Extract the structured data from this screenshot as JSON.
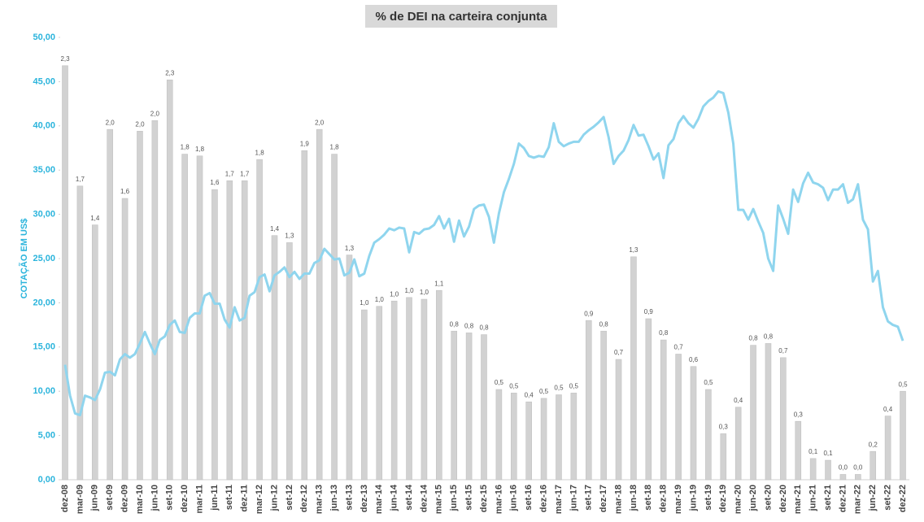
{
  "chart_data": {
    "type": "combo",
    "title": "% de DEI na carteira conjunta",
    "y_label": "COTAÇÃO EM US$",
    "categories": [
      "dez-08",
      null,
      null,
      "mar-09",
      null,
      null,
      "jun-09",
      null,
      null,
      "set-09",
      null,
      null,
      "dez-09",
      null,
      null,
      "mar-10",
      null,
      null,
      "jun-10",
      null,
      null,
      "set-10",
      null,
      null,
      "dez-10",
      null,
      null,
      "mar-11",
      null,
      null,
      "jun-11",
      null,
      null,
      "set-11",
      null,
      null,
      "dez-11",
      null,
      null,
      "mar-12",
      null,
      null,
      "jun-12",
      null,
      null,
      "set-12",
      null,
      null,
      "dez-12",
      null,
      null,
      "mar-13",
      null,
      null,
      "jun-13",
      null,
      null,
      "set-13",
      null,
      null,
      "dez-13",
      null,
      null,
      "mar-14",
      null,
      null,
      "jun-14",
      null,
      null,
      "set-14",
      null,
      null,
      "dez-14",
      null,
      null,
      "mar-15",
      null,
      null,
      "jun-15",
      null,
      null,
      "set-15",
      null,
      null,
      "dez-15",
      null,
      null,
      "mar-16",
      null,
      null,
      "jun-16",
      null,
      null,
      "set-16",
      null,
      null,
      "dez-16",
      null,
      null,
      "mar-17",
      null,
      null,
      "jun-17",
      null,
      null,
      "set-17",
      null,
      null,
      "dez-17",
      null,
      null,
      "mar-18",
      null,
      null,
      "jun-18",
      null,
      null,
      "set-18",
      null,
      null,
      "dez-18",
      null,
      null,
      "mar-19",
      null,
      null,
      "jun-19",
      null,
      null,
      "set-19",
      null,
      null,
      "dez-19",
      null,
      null,
      "mar-20",
      null,
      null,
      "jun-20",
      null,
      null,
      "set-20",
      null,
      null,
      "dez-20",
      null,
      null,
      "mar-21",
      null,
      null,
      "jun-21",
      null,
      null,
      "set-21",
      null,
      null,
      "dez-21",
      null,
      null,
      "mar-22",
      null,
      null,
      "jun-22",
      null,
      null,
      "set-22",
      null,
      null,
      "dez-22"
    ],
    "series": [
      {
        "type": "bar",
        "axis": "y2",
        "color": "#d2d2d2",
        "values": [
          2.34,
          null,
          null,
          1.66,
          null,
          null,
          1.44,
          null,
          null,
          1.98,
          null,
          null,
          1.59,
          null,
          null,
          1.97,
          null,
          null,
          2.03,
          null,
          null,
          2.26,
          null,
          null,
          1.84,
          null,
          null,
          1.83,
          null,
          null,
          1.64,
          null,
          null,
          1.69,
          null,
          null,
          1.69,
          null,
          null,
          1.81,
          null,
          null,
          1.38,
          null,
          null,
          1.34,
          null,
          null,
          1.86,
          null,
          null,
          1.98,
          null,
          null,
          1.84,
          null,
          null,
          1.27,
          null,
          null,
          0.96,
          null,
          null,
          0.98,
          null,
          null,
          1.01,
          null,
          null,
          1.03,
          null,
          null,
          1.02,
          null,
          null,
          1.07,
          null,
          null,
          0.84,
          null,
          null,
          0.83,
          null,
          null,
          0.82,
          null,
          null,
          0.51,
          null,
          null,
          0.49,
          null,
          null,
          0.44,
          null,
          null,
          0.46,
          null,
          null,
          0.48,
          null,
          null,
          0.49,
          null,
          null,
          0.9,
          null,
          null,
          0.84,
          null,
          null,
          0.68,
          null,
          null,
          1.26,
          null,
          null,
          0.91,
          null,
          null,
          0.79,
          null,
          null,
          0.71,
          null,
          null,
          0.64,
          null,
          null,
          0.51,
          null,
          null,
          0.26,
          null,
          null,
          0.41,
          null,
          null,
          0.76,
          null,
          null,
          0.77,
          null,
          null,
          0.69,
          null,
          null,
          0.33,
          null,
          null,
          0.12,
          null,
          null,
          0.11,
          null,
          null,
          0.03,
          null,
          null,
          0.03,
          null,
          null,
          0.16,
          null,
          null,
          0.36,
          null,
          null,
          0.5
        ],
        "value_labels": [
          "2,3",
          null,
          null,
          "1,7",
          null,
          null,
          "1,4",
          null,
          null,
          "2,0",
          null,
          null,
          "1,6",
          null,
          null,
          "2,0",
          null,
          null,
          "2,0",
          null,
          null,
          "2,3",
          null,
          null,
          "1,8",
          null,
          null,
          "1,8",
          null,
          null,
          "1,6",
          null,
          null,
          "1,7",
          null,
          null,
          "1,7",
          null,
          null,
          "1,8",
          null,
          null,
          "1,4",
          null,
          null,
          "1,3",
          null,
          null,
          "1,9",
          null,
          null,
          "2,0",
          null,
          null,
          "1,8",
          null,
          null,
          "1,3",
          null,
          null,
          "1,0",
          null,
          null,
          "1,0",
          null,
          null,
          "1,0",
          null,
          null,
          "1,0",
          null,
          null,
          "1,0",
          null,
          null,
          "1,1",
          null,
          null,
          "0,8",
          null,
          null,
          "0,8",
          null,
          null,
          "0,8",
          null,
          null,
          "0,5",
          null,
          null,
          "0,5",
          null,
          null,
          "0,4",
          null,
          null,
          "0,5",
          null,
          null,
          "0,5",
          null,
          null,
          "0,5",
          null,
          null,
          "0,9",
          null,
          null,
          "0,8",
          null,
          null,
          "0,7",
          null,
          null,
          "1,3",
          null,
          null,
          "0,9",
          null,
          null,
          "0,8",
          null,
          null,
          "0,7",
          null,
          null,
          "0,6",
          null,
          null,
          "0,5",
          null,
          null,
          "0,3",
          null,
          null,
          "0,4",
          null,
          null,
          "0,8",
          null,
          null,
          "0,8",
          null,
          null,
          "0,7",
          null,
          null,
          "0,3",
          null,
          null,
          "0,1",
          null,
          null,
          "0,1",
          null,
          null,
          "0,0",
          null,
          null,
          "0,0",
          null,
          null,
          "0,2",
          null,
          null,
          "0,4",
          null,
          null,
          "0,5"
        ]
      },
      {
        "type": "line",
        "color": "#8fd5ee",
        "values": [
          13.0,
          9.5,
          7.5,
          7.3,
          9.5,
          9.3,
          9.0,
          10.2,
          12.1,
          12.2,
          11.8,
          13.6,
          14.2,
          13.8,
          14.2,
          15.4,
          16.7,
          15.4,
          14.2,
          15.8,
          16.2,
          17.5,
          18.0,
          16.7,
          16.6,
          18.3,
          18.8,
          18.8,
          20.8,
          21.1,
          19.9,
          19.9,
          18.1,
          17.2,
          19.5,
          18.0,
          18.3,
          20.8,
          21.2,
          22.9,
          23.2,
          21.3,
          23.1,
          23.5,
          24.0,
          22.9,
          23.5,
          22.7,
          23.3,
          23.3,
          24.5,
          24.8,
          26.1,
          25.5,
          24.9,
          25.0,
          23.1,
          23.4,
          24.9,
          23.0,
          23.3,
          25.3,
          26.8,
          27.2,
          27.7,
          28.4,
          28.2,
          28.5,
          28.4,
          25.7,
          28.0,
          27.8,
          28.3,
          28.4,
          28.8,
          29.8,
          28.4,
          29.5,
          26.9,
          29.3,
          27.5,
          28.6,
          30.6,
          31.0,
          31.1,
          29.7,
          26.8,
          30.1,
          32.5,
          34.0,
          35.7,
          38.0,
          37.5,
          36.6,
          36.4,
          36.6,
          36.5,
          37.6,
          40.3,
          38.2,
          37.7,
          38.0,
          38.2,
          38.2,
          39.0,
          39.5,
          39.9,
          40.4,
          41.0,
          38.7,
          35.7,
          36.6,
          37.2,
          38.4,
          40.1,
          38.9,
          39.0,
          37.7,
          36.2,
          36.9,
          34.1,
          37.8,
          38.5,
          40.3,
          41.1,
          40.3,
          39.8,
          40.8,
          42.2,
          42.8,
          43.2,
          43.9,
          43.7,
          41.5,
          38.0,
          30.5,
          30.5,
          29.4,
          30.6,
          29.2,
          27.9,
          25.0,
          23.6,
          31.0,
          29.5,
          27.8,
          32.8,
          31.4,
          33.5,
          34.7,
          33.6,
          33.4,
          33.0,
          31.6,
          32.8,
          32.8,
          33.4,
          31.3,
          31.7,
          33.4,
          29.4,
          28.3,
          22.4,
          23.6,
          19.5,
          17.9,
          17.5,
          17.3,
          15.7
        ]
      }
    ],
    "ylim": [
      0,
      50
    ],
    "yticks": [
      {
        "value": 0,
        "label": "0,00"
      },
      {
        "value": 5,
        "label": "5,00"
      },
      {
        "value": 10,
        "label": "10,00"
      },
      {
        "value": 15,
        "label": "15,00"
      },
      {
        "value": 20,
        "label": "20,00"
      },
      {
        "value": 25,
        "label": "25,00"
      },
      {
        "value": 30,
        "label": "30,00"
      },
      {
        "value": 35,
        "label": "35,00"
      },
      {
        "value": 40,
        "label": "40,00"
      },
      {
        "value": 45,
        "label": "45,00"
      },
      {
        "value": 50,
        "label": "50,00"
      }
    ],
    "y2lim": [
      0,
      2.5
    ]
  }
}
